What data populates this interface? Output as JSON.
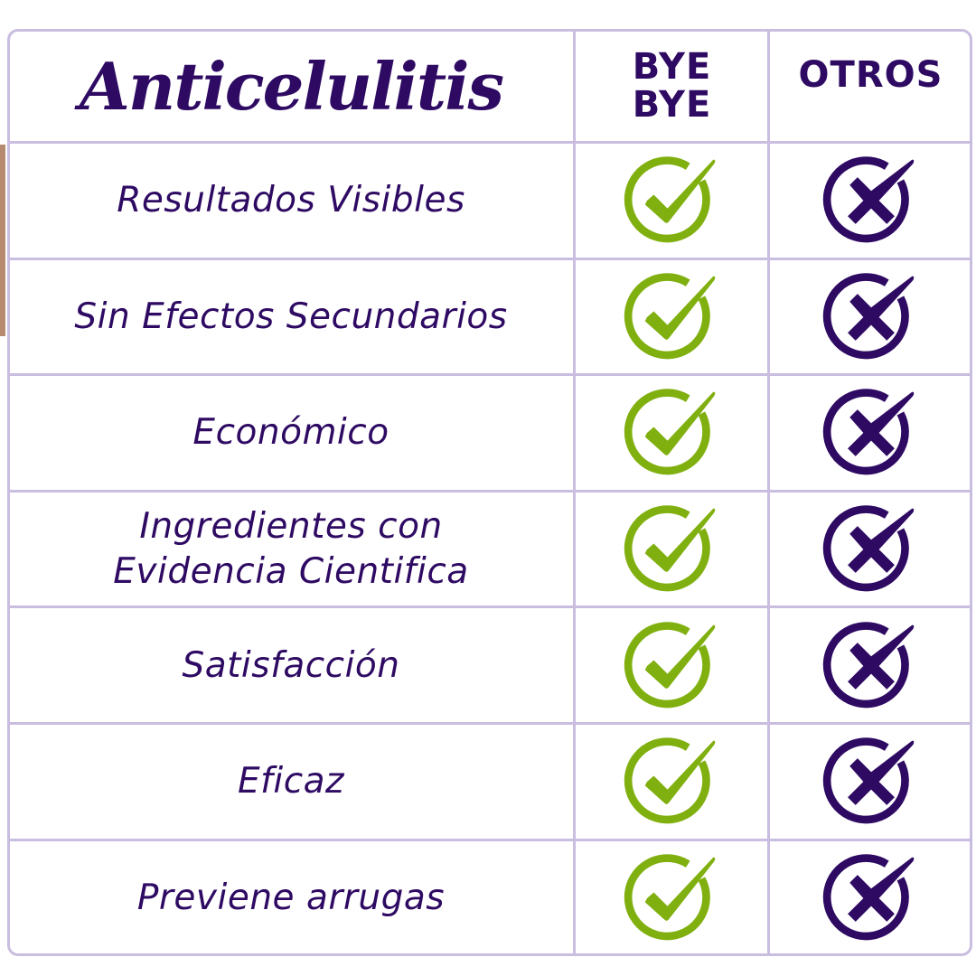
{
  "header": {
    "title": "Anticelulitis",
    "col_brand": "BYE BYE",
    "col_brand_line1": "BYE",
    "col_brand_line2": "BYE",
    "col_others": "OTROS"
  },
  "colors": {
    "text": "#2e0a63",
    "check": "#80b00f",
    "cross": "#2e0a63",
    "border": "#c9bde0"
  },
  "rows": [
    {
      "label": "Resultados Visibles",
      "brand": "check-icon",
      "others": "cross-icon"
    },
    {
      "label": "Sin Efectos Secundarios",
      "brand": "check-icon",
      "others": "cross-icon"
    },
    {
      "label": "Económico",
      "brand": "check-icon",
      "others": "cross-icon"
    },
    {
      "label": "Ingredientes con Evidencia Cientifica",
      "brand": "check-icon",
      "others": "cross-icon"
    },
    {
      "label": "Satisfacción",
      "brand": "check-icon",
      "others": "cross-icon"
    },
    {
      "label": "Eficaz",
      "brand": "check-icon",
      "others": "cross-icon"
    },
    {
      "label": "Previene arrugas",
      "brand": "check-icon",
      "others": "cross-icon"
    }
  ]
}
